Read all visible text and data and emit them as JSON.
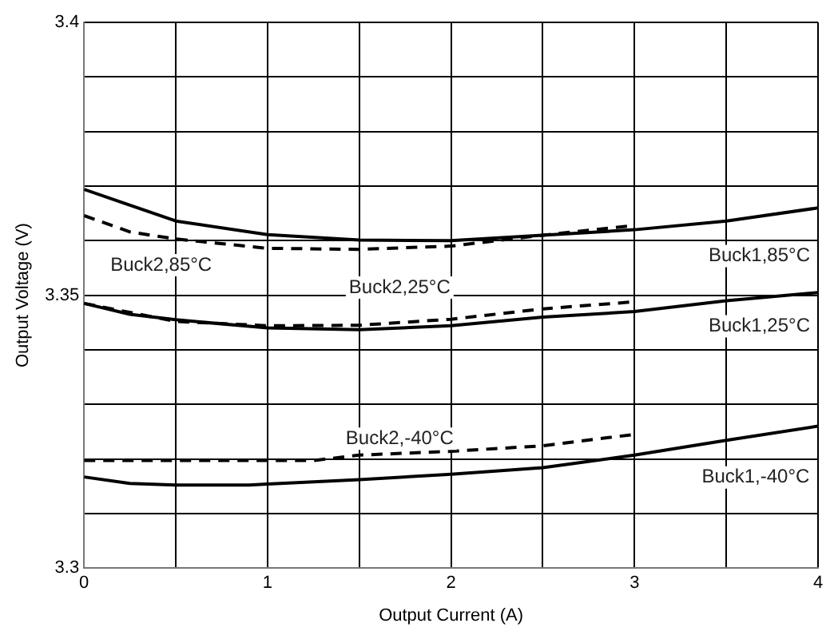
{
  "chart_data": {
    "type": "line",
    "xlabel": "Output Current (A)",
    "ylabel": "Output Voltage (V)",
    "xlim": [
      0,
      4
    ],
    "xticks": [
      0,
      {
        "value": 0.5,
        "label": null
      },
      1,
      {
        "value": 1.5,
        "label": null
      },
      2,
      {
        "value": 2.5,
        "label": null
      },
      3,
      {
        "value": 3.5,
        "label": null
      },
      4
    ],
    "ylim": [
      3.3,
      3.4
    ],
    "yticks": [
      3.3,
      {
        "value": 3.31,
        "label": null
      },
      {
        "value": 3.32,
        "label": null
      },
      {
        "value": 3.33,
        "label": null
      },
      {
        "value": 3.34,
        "label": null
      },
      3.35,
      {
        "value": 3.36,
        "label": null
      },
      {
        "value": 3.37,
        "label": null
      },
      {
        "value": 3.38,
        "label": null
      },
      {
        "value": 3.39,
        "label": null
      },
      3.4
    ],
    "grid": true,
    "legend": false,
    "marker": "none",
    "series": [
      {
        "name": "Buck1,85°C",
        "color": "#000000",
        "line_style": "solid",
        "x": [
          0,
          0.25,
          0.5,
          1,
          1.5,
          2,
          2.5,
          3,
          3.5,
          4
        ],
        "values": [
          3.3694,
          3.3665,
          3.3636,
          3.3611,
          3.3601,
          3.36,
          3.361,
          3.362,
          3.3636,
          3.366
        ]
      },
      {
        "name": "Buck2,85°C",
        "color": "#000000",
        "line_style": "dashed",
        "x": [
          0,
          0.25,
          0.5,
          1,
          1.5,
          2,
          2.5,
          3
        ],
        "values": [
          3.3646,
          3.3616,
          3.3603,
          3.3586,
          3.3584,
          3.359,
          3.361,
          3.3628
        ]
      },
      {
        "name": "Buck1,25°C",
        "color": "#000000",
        "line_style": "solid",
        "x": [
          0,
          0.25,
          0.5,
          1,
          1.5,
          2,
          2.5,
          3,
          3.5,
          4
        ],
        "values": [
          3.3485,
          3.3465,
          3.3455,
          3.344,
          3.3437,
          3.3444,
          3.346,
          3.347,
          3.349,
          3.3505
        ]
      },
      {
        "name": "Buck2,25°C",
        "color": "#000000",
        "line_style": "dashed",
        "x": [
          0,
          0.5,
          1,
          1.5,
          2,
          2.5,
          3
        ],
        "values": [
          3.3485,
          3.3452,
          3.3444,
          3.3445,
          3.3456,
          3.3475,
          3.3488
        ]
      },
      {
        "name": "Buck1,-40°C",
        "color": "#000000",
        "line_style": "solid",
        "x": [
          0,
          0.25,
          0.5,
          0.9,
          1,
          1.5,
          2,
          2.5,
          3,
          3.5,
          4
        ],
        "values": [
          3.3167,
          3.3155,
          3.3152,
          3.3152,
          3.3154,
          3.3162,
          3.3172,
          3.3184,
          3.3207,
          3.3234,
          3.326
        ]
      },
      {
        "name": "Buck2,-40°C",
        "color": "#000000",
        "line_style": "dashed",
        "x": [
          0,
          0.5,
          1,
          1.25,
          1.5,
          2,
          2.5,
          3
        ],
        "values": [
          3.3197,
          3.3197,
          3.3197,
          3.3197,
          3.3207,
          3.3214,
          3.3224,
          3.3245
        ]
      }
    ]
  }
}
